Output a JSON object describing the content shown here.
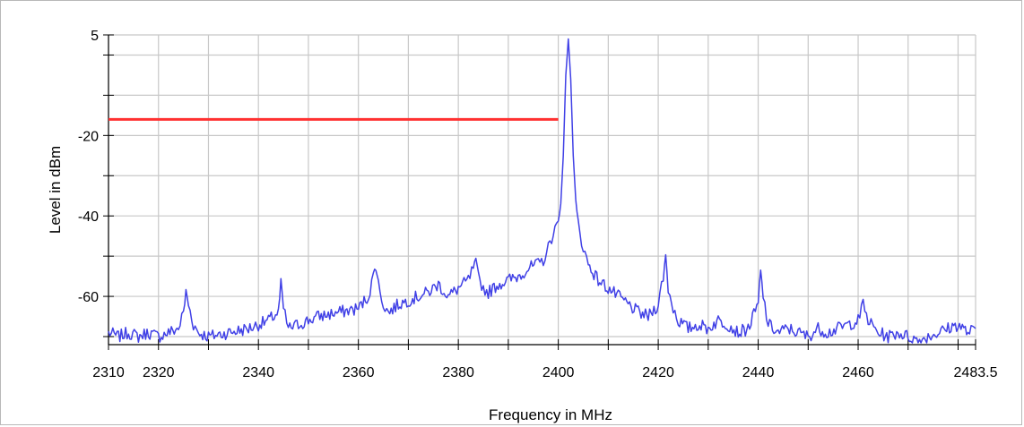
{
  "chart_data": {
    "type": "line",
    "title": "",
    "xlabel": "Frequency in MHz",
    "ylabel": "Level in dBm",
    "xlim": [
      2310,
      2483.5
    ],
    "ylim": [
      -72,
      5
    ],
    "grid": true,
    "x_ticks": [
      2310,
      2320,
      2340,
      2360,
      2380,
      2400,
      2420,
      2440,
      2460,
      2483.5
    ],
    "x_tick_labels": [
      "2310",
      "2320",
      "2340",
      "2360",
      "2380",
      "2400",
      "2420",
      "2440",
      "2460",
      "2483.5"
    ],
    "x_grid": [
      2310,
      2320,
      2330,
      2340,
      2350,
      2360,
      2370,
      2380,
      2390,
      2400,
      2410,
      2420,
      2430,
      2440,
      2450,
      2460,
      2470,
      2480
    ],
    "y_ticks": [
      5,
      -20,
      -40,
      -60
    ],
    "y_tick_labels": [
      "5",
      "-20",
      "-40",
      "-60"
    ],
    "y_grid": [
      5,
      0,
      -10,
      -20,
      -30,
      -40,
      -50,
      -60,
      -70
    ],
    "limit_line": {
      "x": [
        2310,
        2400
      ],
      "y": [
        -16
      ],
      "color": "#ff3030"
    },
    "series": [
      {
        "color": "#4040e6",
        "x": [
          2310,
          2312,
          2314,
          2316,
          2318,
          2320,
          2322,
          2324,
          2325,
          2325.5,
          2326,
          2327,
          2328,
          2330,
          2334,
          2338,
          2342,
          2344,
          2344.5,
          2345,
          2346,
          2348,
          2352,
          2356,
          2360,
          2362,
          2363,
          2363.5,
          2364,
          2365,
          2366,
          2368,
          2370,
          2372,
          2374,
          2376,
          2378,
          2380,
          2382,
          2383,
          2383.5,
          2384,
          2385,
          2386,
          2388,
          2390,
          2392,
          2394,
          2396,
          2397,
          2398,
          2399,
          2400,
          2400.5,
          2401,
          2401.5,
          2401.8,
          2402,
          2402.2,
          2402.5,
          2403,
          2403.5,
          2404,
          2405,
          2406,
          2408,
          2410,
          2412,
          2414,
          2416,
          2418,
          2420,
          2421,
          2421.5,
          2422,
          2423,
          2424,
          2426,
          2428,
          2430,
          2432,
          2434,
          2436,
          2438,
          2440,
          2440.5,
          2441,
          2442,
          2444,
          2446,
          2448,
          2450,
          2452,
          2454,
          2456,
          2458,
          2460,
          2461,
          2462,
          2464,
          2466,
          2468,
          2470,
          2472,
          2474,
          2476,
          2478,
          2480,
          2482,
          2483.5
        ],
        "values": [
          -69,
          -70,
          -69,
          -70,
          -69,
          -70,
          -69,
          -68,
          -64,
          -59,
          -62,
          -67,
          -69,
          -70,
          -69,
          -68,
          -66,
          -64,
          -57,
          -63,
          -68,
          -67,
          -65,
          -64,
          -63,
          -60,
          -55,
          -52,
          -57,
          -62,
          -64,
          -62,
          -61,
          -60,
          -59,
          -57,
          -60,
          -58,
          -56,
          -53,
          -52,
          -55,
          -58,
          -59,
          -57,
          -56,
          -55,
          -53,
          -52,
          -51,
          -48,
          -44,
          -42,
          -37,
          -25,
          -5,
          0,
          4,
          0,
          -6,
          -25,
          -36,
          -42,
          -48,
          -52,
          -56,
          -58,
          -60,
          -62,
          -64,
          -65,
          -62,
          -55,
          -50,
          -58,
          -63,
          -66,
          -68,
          -67,
          -68,
          -66,
          -67,
          -69,
          -68,
          -62,
          -54,
          -60,
          -67,
          -69,
          -68,
          -69,
          -70,
          -68,
          -69,
          -68,
          -67,
          -66,
          -62,
          -66,
          -69,
          -70,
          -69,
          -70,
          -71,
          -70,
          -69,
          -68,
          -67,
          -69,
          -68
        ]
      }
    ]
  }
}
